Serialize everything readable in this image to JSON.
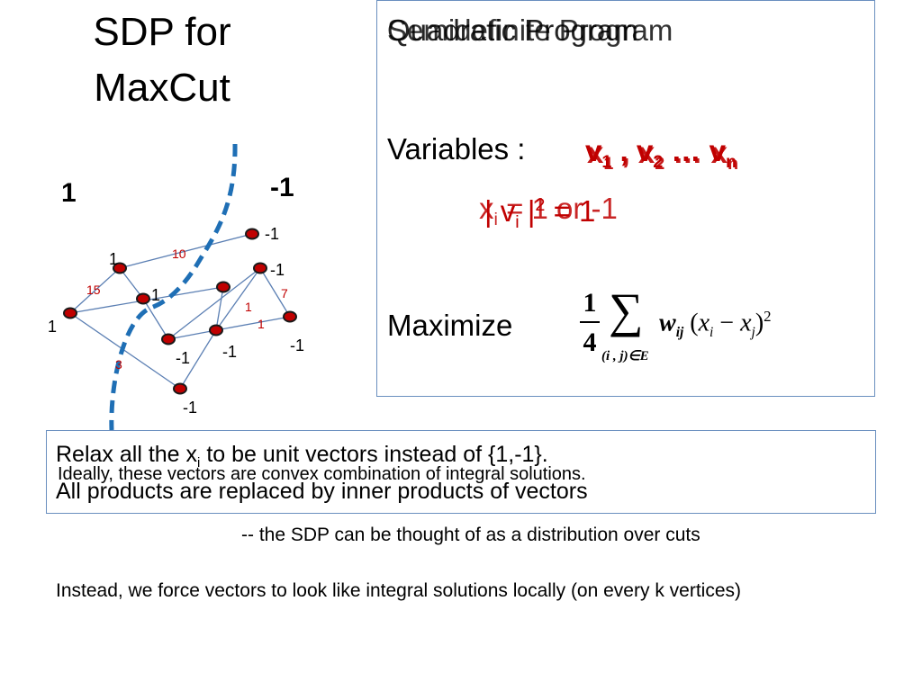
{
  "title_lines": [
    "SDP for",
    "MaxCut"
  ],
  "side_left": "1",
  "side_right": "-1",
  "graph": {
    "vertex_labels": [
      "-1",
      "1",
      "-1",
      "1",
      "1",
      "-1",
      "-1",
      "-1",
      "-1"
    ],
    "edge_weights": [
      "10",
      "15",
      "1",
      "7",
      "1",
      "3"
    ]
  },
  "qp": {
    "heading_back": "Semidefinite Program",
    "heading_front": "Quadratic Program",
    "variables_label": "Variables :",
    "var_front": [
      "x",
      "1",
      " , x",
      "2",
      " … x",
      "n"
    ],
    "var_back": [
      "v",
      "1",
      " , v",
      "2",
      " … v",
      "n"
    ],
    "constraint_back": [
      "| v",
      "i",
      " |",
      "2",
      " = 1"
    ],
    "constraint_front": [
      "x",
      "i",
      " = 1 or -1"
    ],
    "maximize_label": "Maximize",
    "objective": {
      "fraction_num": "1",
      "fraction_den": "4",
      "sum": "∑",
      "sum_under": "(i , j)∈E",
      "weight": "w",
      "weight_sub": "ij",
      "expr_open": "(",
      "xi": "x",
      "xi_sub": "i",
      "minus": "−",
      "xj": "x",
      "xj_sub": "j",
      "expr_close": ")",
      "power": "2"
    }
  },
  "relax": {
    "line1_pre": "Relax all the x",
    "line1_sub": "i",
    "line1_post": "  to be unit vectors instead of {1,-1}.",
    "line2": "All products are replaced by inner products of vectors",
    "overlay": "Ideally,  these vectors are convex combination of integral solutions."
  },
  "note_distribution": "--  the SDP can be thought of as a distribution over cuts",
  "note_local": "Instead, we force vectors to look like integral solutions locally (on every k vertices)",
  "colors": {
    "vertex": "#c00000",
    "edge": "#5b7fb3",
    "cut": "#1f6fb5",
    "red_text": "#c00000",
    "box_border": "#6a8fbf"
  }
}
